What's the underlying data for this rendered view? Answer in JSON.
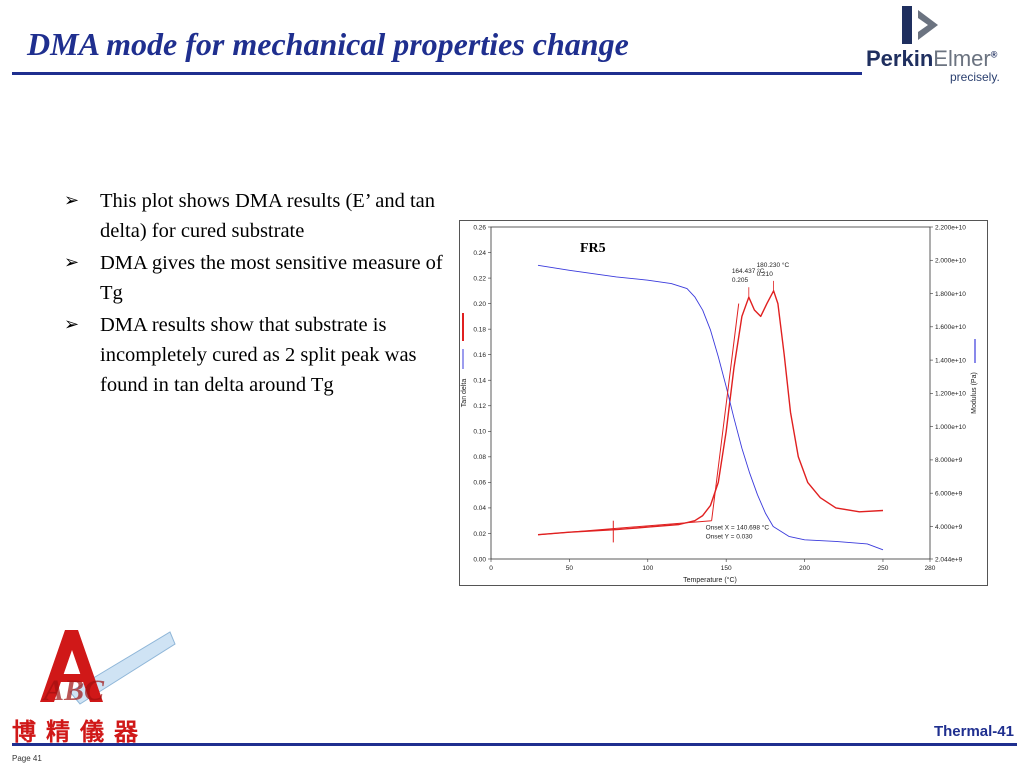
{
  "slide": {
    "title": "DMA mode for mechanical properties change",
    "footer_label": "Thermal-41",
    "page_label": "Page 41"
  },
  "logo": {
    "brand_first": "Perkin",
    "brand_second": "Elmer",
    "registered": "®",
    "tagline": "precisely."
  },
  "company_logo": {
    "letters": "ABC",
    "chinese_name": "博精儀器"
  },
  "bullets": [
    "This plot shows DMA results (E’ and tan delta) for cured substrate",
    "DMA gives the most sensitive measure of Tg",
    "DMA results show that substrate is incompletely cured as 2 split peak was found in tan delta around Tg"
  ],
  "colors": {
    "title_blue": "#1f2f8f",
    "tan_delta_red": "#e02020",
    "modulus_blue": "#3a3adc",
    "logo_red": "#d01818"
  },
  "chart_data": {
    "type": "line",
    "title": "FR5",
    "xlabel": "Temperature (°C)",
    "ylabel_left": "Tan delta",
    "ylabel_right": "Modulus (Pa)",
    "xlim": [
      0,
      280
    ],
    "ylim_left": [
      0,
      0.26
    ],
    "ylim_right": [
      2044000000.0,
      22000000000.0
    ],
    "x_ticks": [
      "0",
      "50",
      "100",
      "150",
      "200",
      "250",
      "280"
    ],
    "y_ticks_left": [
      "0.00",
      "0.02",
      "0.04",
      "0.06",
      "0.08",
      "0.10",
      "0.12",
      "0.14",
      "0.16",
      "0.18",
      "0.20",
      "0.22",
      "0.24",
      "0.26"
    ],
    "y_ticks_right": [
      "2.044e+9",
      "4.000e+9",
      "6.000e+9",
      "8.000e+9",
      "1.000e+10",
      "1.200e+10",
      "1.400e+10",
      "1.600e+10",
      "1.800e+10",
      "2.000e+10",
      "2.200e+10"
    ],
    "y_tick_values_right": [
      2044000000.0,
      4000000000.0,
      6000000000.0,
      8000000000.0,
      10000000000.0,
      12000000000.0,
      14000000000.0,
      16000000000.0,
      18000000000.0,
      20000000000.0,
      22000000000.0
    ],
    "series": [
      {
        "axis": "left",
        "color": "#e02020",
        "x": [
          30,
          50,
          80,
          100,
          120,
          130,
          135,
          140,
          145,
          150,
          155,
          160,
          164.437,
          168,
          172,
          176,
          180.23,
          183,
          187,
          191,
          196,
          202,
          210,
          220,
          235,
          250
        ],
        "y": [
          0.019,
          0.021,
          0.023,
          0.025,
          0.027,
          0.03,
          0.034,
          0.042,
          0.06,
          0.1,
          0.15,
          0.19,
          0.205,
          0.195,
          0.19,
          0.2,
          0.21,
          0.2,
          0.16,
          0.115,
          0.08,
          0.06,
          0.048,
          0.04,
          0.037,
          0.038
        ]
      },
      {
        "axis": "right",
        "color": "#3a3adc",
        "x": [
          30,
          50,
          80,
          100,
          115,
          125,
          130,
          135,
          140,
          145,
          150,
          155,
          160,
          165,
          170,
          175,
          180,
          190,
          200,
          220,
          240,
          250
        ],
        "y": [
          19700000000.0,
          19400000000.0,
          19000000000.0,
          18800000000.0,
          18600000000.0,
          18300000000.0,
          17800000000.0,
          17000000000.0,
          15800000000.0,
          14200000000.0,
          12400000000.0,
          10500000000.0,
          8700000000.0,
          7200000000.0,
          5900000000.0,
          4800000000.0,
          4000000000.0,
          3400000000.0,
          3200000000.0,
          3100000000.0,
          2950000000.0,
          2600000000.0
        ]
      }
    ],
    "annotations": [
      {
        "x": 164.437,
        "y": 0.205,
        "text1": "164.437 °C",
        "text2": "0.205"
      },
      {
        "x": 180.23,
        "y": 0.21,
        "text1": "180.230 °C",
        "text2": "0.210"
      },
      {
        "x": 140.698,
        "y": 0.03,
        "text1": "Onset X = 140.698 °C",
        "text2": "Onset Y = 0.030"
      }
    ],
    "grid": false,
    "legend": "none"
  }
}
